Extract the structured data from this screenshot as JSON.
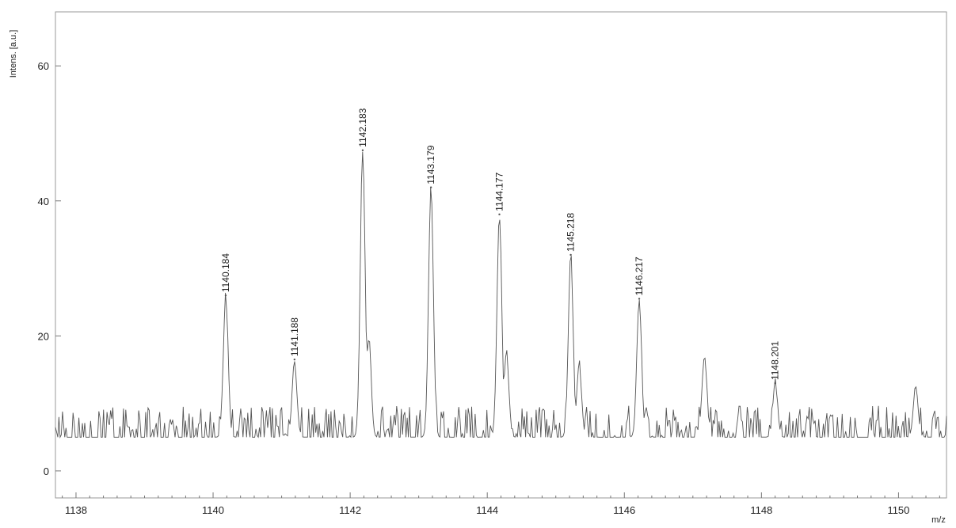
{
  "chart_data": {
    "type": "line",
    "title": "",
    "xlabel": "m/z",
    "ylabel": "Intens. [a.u.]",
    "xlim": [
      1137.7,
      1150.7
    ],
    "ylim": [
      -4,
      68
    ],
    "xticks": [
      1138,
      1140,
      1142,
      1144,
      1146,
      1148,
      1150
    ],
    "yticks": [
      0,
      20,
      40,
      60
    ],
    "grid": false,
    "baseline_noise": {
      "min": 0,
      "max": 11,
      "mean": 5
    },
    "peaks": [
      {
        "x": 1140.184,
        "y": 26,
        "label": "1140.184"
      },
      {
        "x": 1141.188,
        "y": 16.5,
        "label": "1141.188"
      },
      {
        "x": 1142.183,
        "y": 47.5,
        "label": "1142.183"
      },
      {
        "x": 1143.179,
        "y": 42,
        "label": "1143.179"
      },
      {
        "x": 1144.177,
        "y": 38,
        "label": "1144.177"
      },
      {
        "x": 1145.218,
        "y": 32,
        "label": "1145.218"
      },
      {
        "x": 1146.217,
        "y": 25.5,
        "label": "1146.217"
      },
      {
        "x": 1148.201,
        "y": 13,
        "label": "1148.201"
      }
    ],
    "unlabeled_peaks": [
      {
        "x": 1142.27,
        "y": 20
      },
      {
        "x": 1144.28,
        "y": 17.5
      },
      {
        "x": 1145.34,
        "y": 16
      },
      {
        "x": 1147.17,
        "y": 17.5
      },
      {
        "x": 1150.25,
        "y": 12.5
      }
    ],
    "line_color": "#555555"
  }
}
